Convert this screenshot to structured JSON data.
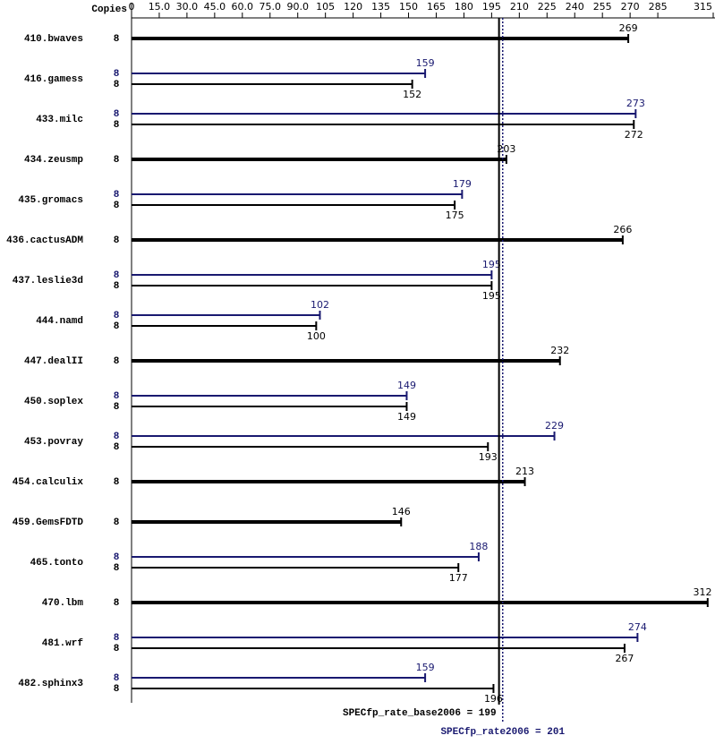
{
  "chart_data": {
    "type": "bar",
    "orientation": "horizontal",
    "copies_header": "Copies",
    "categories": [
      "410.bwaves",
      "416.gamess",
      "433.milc",
      "434.zeusmp",
      "435.gromacs",
      "436.cactusADM",
      "437.leslie3d",
      "444.namd",
      "447.dealII",
      "450.soplex",
      "453.povray",
      "454.calculix",
      "459.GemsFDTD",
      "465.tonto",
      "470.lbm",
      "481.wrf",
      "482.sphinx3"
    ],
    "series": [
      {
        "color": "#000000",
        "copies": [
          8,
          8,
          8,
          8,
          8,
          8,
          8,
          8,
          8,
          8,
          8,
          8,
          8,
          8,
          8,
          8,
          8
        ],
        "values": [
          269,
          152,
          272,
          203,
          175,
          266,
          195,
          100,
          232,
          149,
          193,
          213,
          146,
          177,
          312,
          267,
          196
        ]
      },
      {
        "color": "#191970",
        "copies": [
          null,
          8,
          8,
          null,
          8,
          null,
          8,
          8,
          null,
          8,
          8,
          null,
          null,
          8,
          null,
          8,
          8
        ],
        "values": [
          null,
          159,
          273,
          null,
          179,
          null,
          195,
          102,
          null,
          149,
          229,
          null,
          null,
          188,
          null,
          274,
          159
        ]
      }
    ],
    "xlim": [
      0,
      315
    ],
    "xticks": [
      0,
      {
        "value": 15,
        "label": "15.0"
      },
      {
        "value": 30,
        "label": "30.0"
      },
      {
        "value": 45,
        "label": "45.0"
      },
      {
        "value": 60,
        "label": "60.0"
      },
      {
        "value": 75,
        "label": "75.0"
      },
      {
        "value": 90,
        "label": "90.0"
      },
      105,
      120,
      135,
      150,
      165,
      180,
      195,
      210,
      225,
      240,
      255,
      270,
      285,
      315
    ],
    "reference_lines": [
      {
        "label": "SPECfp_rate_base2006 = 199",
        "value": 199,
        "color": "#000000",
        "style": "solid"
      },
      {
        "label": "SPECfp_rate2006 = 201",
        "value": 201,
        "color": "#191970",
        "style": "dotted"
      }
    ]
  }
}
